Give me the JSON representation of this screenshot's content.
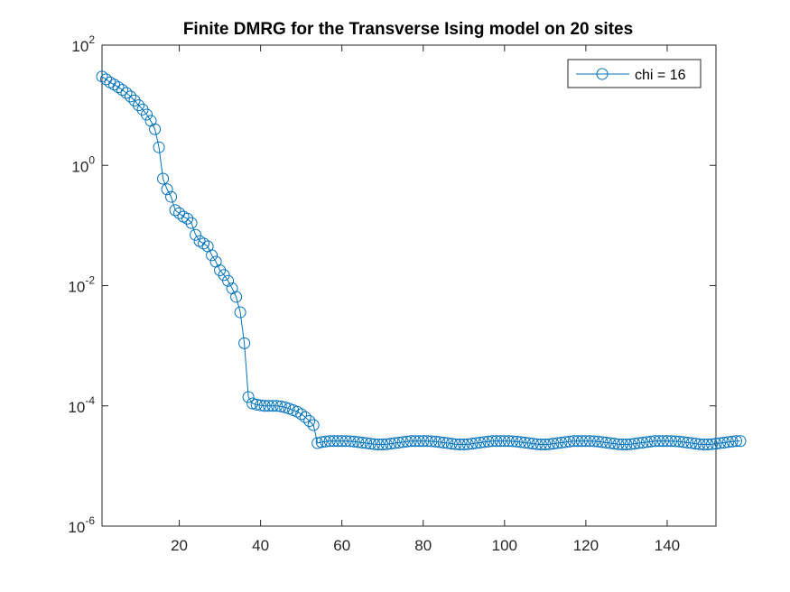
{
  "chart_data": {
    "type": "line",
    "title": "Finite DMRG for the Transverse Ising model on 20 sites",
    "xlabel": "",
    "ylabel": "",
    "xlim": [
      1,
      152
    ],
    "ylim": [
      1e-06,
      100
    ],
    "yscale": "log",
    "xticks": [
      "20",
      "40",
      "60",
      "80",
      "100",
      "120",
      "140"
    ],
    "yticks": [
      {
        "base": "10",
        "exp": "2"
      },
      {
        "base": "10",
        "exp": "0"
      },
      {
        "base": "10",
        "exp": "-2"
      },
      {
        "base": "10",
        "exp": "-4"
      },
      {
        "base": "10",
        "exp": "-6"
      }
    ],
    "grid": false,
    "legend_position": "top-right",
    "series": [
      {
        "name": "chi = 16",
        "color": "#0072bd",
        "marker": "circle",
        "y": [
          30,
          27,
          24,
          22,
          20,
          18,
          16,
          14,
          12,
          10,
          8.5,
          7,
          5.5,
          4,
          2,
          0.6,
          0.4,
          0.3,
          0.18,
          0.16,
          0.14,
          0.13,
          0.11,
          0.07,
          0.055,
          0.05,
          0.045,
          0.032,
          0.025,
          0.018,
          0.015,
          0.012,
          0.009,
          0.0065,
          0.0036,
          0.0011,
          0.00014,
          0.00011,
          0.000105,
          0.000102,
          0.0001,
          0.0001,
          0.0001,
          0.0001,
          9.8e-05,
          9.5e-05,
          9e-05,
          8.5e-05,
          8e-05,
          7.3e-05,
          6.5e-05,
          5.6e-05,
          4.8e-05,
          2.4e-05,
          2.5e-05,
          2.55e-05,
          2.6e-05,
          2.6e-05,
          2.6e-05,
          2.6e-05,
          2.6e-05,
          2.58e-05,
          2.55e-05,
          2.5e-05,
          2.45e-05,
          2.4e-05,
          2.35e-05,
          2.3e-05,
          2.28e-05,
          2.28e-05,
          2.3e-05,
          2.35e-05,
          2.4e-05,
          2.45e-05,
          2.5e-05,
          2.55e-05,
          2.6e-05,
          2.6e-05,
          2.6e-05,
          2.6e-05,
          2.6e-05,
          2.58e-05,
          2.55e-05,
          2.5e-05,
          2.45e-05,
          2.4e-05,
          2.35e-05,
          2.3e-05,
          2.28e-05,
          2.28e-05,
          2.3e-05,
          2.35e-05,
          2.4e-05,
          2.45e-05,
          2.5e-05,
          2.55e-05,
          2.6e-05,
          2.6e-05,
          2.6e-05,
          2.6e-05,
          2.6e-05,
          2.58e-05,
          2.55e-05,
          2.5e-05,
          2.45e-05,
          2.4e-05,
          2.35e-05,
          2.3e-05,
          2.28e-05,
          2.28e-05,
          2.3e-05,
          2.35e-05,
          2.4e-05,
          2.45e-05,
          2.5e-05,
          2.55e-05,
          2.6e-05,
          2.6e-05,
          2.6e-05,
          2.6e-05,
          2.6e-05,
          2.58e-05,
          2.55e-05,
          2.5e-05,
          2.45e-05,
          2.4e-05,
          2.35e-05,
          2.3e-05,
          2.28e-05,
          2.28e-05,
          2.3e-05,
          2.35e-05,
          2.4e-05,
          2.45e-05,
          2.5e-05,
          2.55e-05,
          2.6e-05,
          2.6e-05,
          2.6e-05,
          2.6e-05,
          2.6e-05,
          2.58e-05,
          2.55e-05,
          2.5e-05,
          2.45e-05,
          2.4e-05,
          2.35e-05,
          2.3e-05,
          2.28e-05,
          2.28e-05,
          2.3e-05,
          2.35e-05,
          2.4e-05,
          2.45e-05,
          2.5e-05,
          2.55e-05,
          2.6e-05,
          2.6e-05
        ]
      }
    ]
  }
}
